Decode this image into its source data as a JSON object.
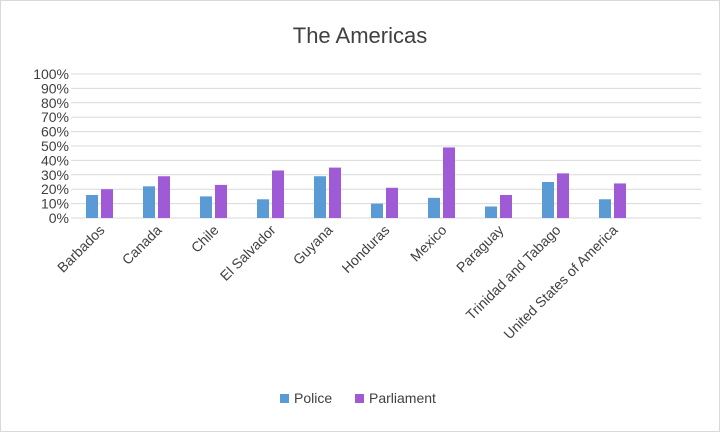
{
  "chart_data": {
    "type": "bar",
    "title": "The Americas",
    "categories": [
      "Barbados",
      "Canada",
      "Chile",
      "El Salvador",
      "Guyana",
      "Honduras",
      "Mexico",
      "Paraguay",
      "Trinidad and Tabago",
      "United States of America"
    ],
    "series": [
      {
        "name": "Police",
        "color": "#5b9bd5",
        "values": [
          16,
          22,
          15,
          13,
          29,
          10,
          14,
          8,
          25,
          13
        ]
      },
      {
        "name": "Parliament",
        "color": "#9e5bd5",
        "values": [
          20,
          29,
          23,
          33,
          35,
          21,
          49,
          16,
          31,
          24
        ]
      }
    ],
    "ylim": [
      0,
      100
    ],
    "y_ticks": [
      "0%",
      "10%",
      "20%",
      "30%",
      "40%",
      "50%",
      "60%",
      "70%",
      "80%",
      "90%",
      "100%"
    ],
    "grid": true,
    "legend_position": "bottom"
  }
}
